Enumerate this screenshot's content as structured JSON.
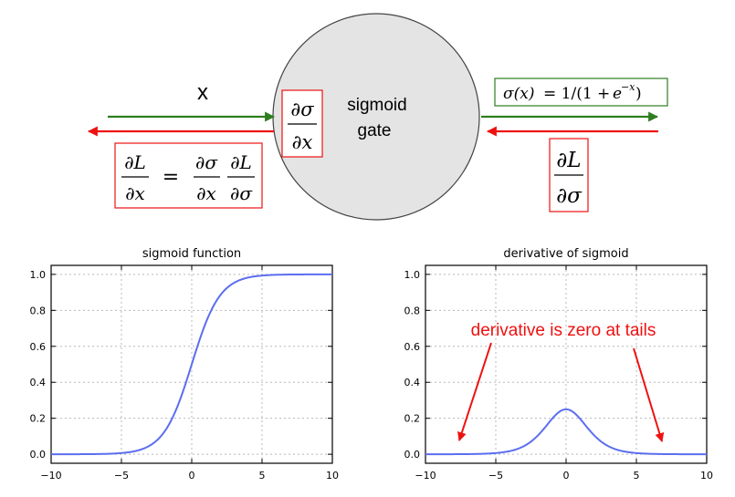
{
  "gate": {
    "input_label": "x",
    "label_line1": "sigmoid",
    "label_line2": "gate",
    "output_formula": "σ(x) = 1/(1 + e^−x)",
    "local_gradient": "∂σ/∂x",
    "upstream_gradient": "∂L/∂σ",
    "chain_rule": "∂L/∂x = ∂σ/∂x · ∂L/∂σ",
    "colors": {
      "forward": "#2e7d1e",
      "backward": "#ee1111",
      "box": "#ee1111",
      "formula_box": "#2e7d1e",
      "circle_fill": "#e4e4e4"
    }
  },
  "annotation": "derivative is zero at tails",
  "chart_data": [
    {
      "type": "line",
      "title": "sigmoid function",
      "function": "sigmoid",
      "xlim": [
        -10,
        10
      ],
      "ylim": [
        -0.05,
        1.05
      ],
      "xticks": [
        -10,
        -5,
        0,
        5,
        10
      ],
      "yticks": [
        0.0,
        0.2,
        0.4,
        0.6,
        0.8,
        1.0
      ],
      "x": [
        -10,
        -8,
        -6,
        -4,
        -3,
        -2,
        -1,
        0,
        1,
        2,
        3,
        4,
        6,
        8,
        10
      ],
      "y": [
        0.0,
        0.0003,
        0.0025,
        0.018,
        0.047,
        0.119,
        0.269,
        0.5,
        0.731,
        0.881,
        0.953,
        0.982,
        0.9975,
        0.9997,
        1.0
      ],
      "grid": true,
      "color": "#5b6ef0"
    },
    {
      "type": "line",
      "title": "derivative of sigmoid",
      "function": "sigmoid_derivative",
      "xlim": [
        -10,
        10
      ],
      "ylim": [
        -0.05,
        1.05
      ],
      "xticks": [
        -10,
        -5,
        0,
        5,
        10
      ],
      "yticks": [
        0.0,
        0.2,
        0.4,
        0.6,
        0.8,
        1.0
      ],
      "x": [
        -10,
        -8,
        -6,
        -4,
        -3,
        -2,
        -1,
        0,
        1,
        2,
        3,
        4,
        6,
        8,
        10
      ],
      "y": [
        0.0,
        0.0003,
        0.0025,
        0.0177,
        0.045,
        0.105,
        0.197,
        0.25,
        0.197,
        0.105,
        0.045,
        0.0177,
        0.0025,
        0.0003,
        0.0
      ],
      "grid": true,
      "color": "#5b6ef0"
    }
  ]
}
